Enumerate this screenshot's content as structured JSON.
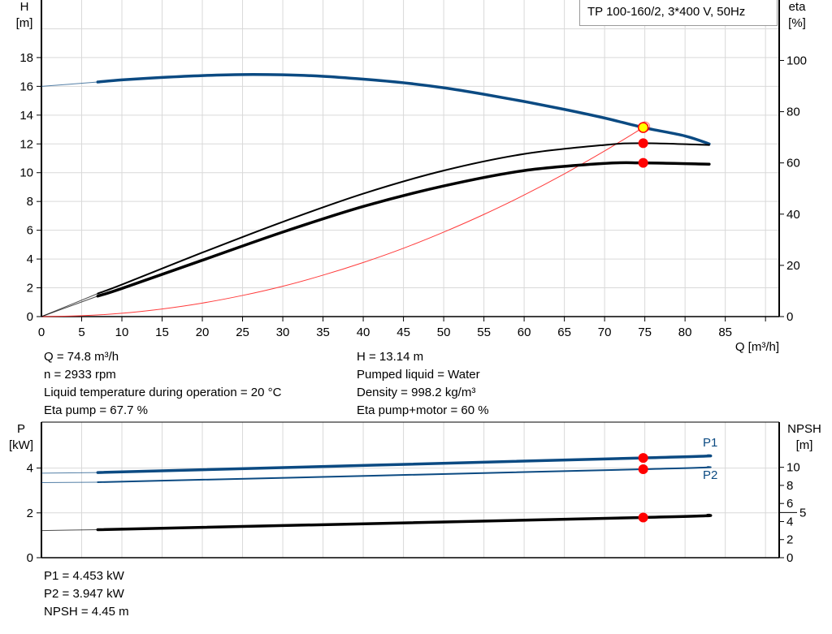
{
  "title": "TP 100-160/2, 3*400 V, 50Hz",
  "colors": {
    "head": "#0b4a82",
    "power": "#0b4a82",
    "eta": "#000000",
    "npsh": "#000000",
    "system_curve": "#ff3b3b",
    "marker": "#ff0000",
    "duty_point_fill": "#ffff00",
    "grid": "#d9d9d9"
  },
  "chart_data": [
    {
      "type": "line",
      "title": "",
      "xlabel": "Q [m³/h]",
      "xlim": [
        0,
        91.7
      ],
      "xticks": [
        0,
        5,
        10,
        15,
        20,
        25,
        30,
        35,
        40,
        45,
        50,
        55,
        60,
        65,
        70,
        75,
        80,
        85
      ],
      "ylabel_left": "H\n[m]",
      "ylabel_left_lines": [
        "H",
        "[m]"
      ],
      "ylim_left": [
        0,
        22
      ],
      "yticks_left": [
        0,
        2,
        4,
        6,
        8,
        10,
        12,
        14,
        16,
        18
      ],
      "ylabel_right_lines": [
        "eta",
        "[%]"
      ],
      "ylim_right": [
        0,
        123.6
      ],
      "yticks_right": [
        0,
        20,
        40,
        60,
        80,
        100
      ],
      "grid": true,
      "series": [
        {
          "key": "H",
          "axis": "left",
          "x": [
            0,
            7,
            10,
            15,
            20,
            25,
            30,
            35,
            40,
            45,
            50,
            55,
            60,
            65,
            70,
            74.8,
            80,
            83
          ],
          "y": [
            16,
            16.3,
            16.45,
            16.62,
            16.75,
            16.82,
            16.8,
            16.7,
            16.5,
            16.25,
            15.9,
            15.45,
            14.95,
            14.4,
            13.8,
            13.14,
            12.55,
            12.0
          ],
          "thin_until": 7
        },
        {
          "key": "system",
          "axis": "left",
          "x": [
            0,
            5,
            10,
            15,
            20,
            25,
            30,
            35,
            40,
            45,
            50,
            55,
            60,
            65,
            70,
            74.8
          ],
          "y": [
            0,
            0.06,
            0.23,
            0.53,
            0.94,
            1.47,
            2.11,
            2.88,
            3.76,
            4.75,
            5.87,
            7.1,
            8.45,
            9.92,
            11.51,
            13.14
          ]
        },
        {
          "key": "eta_pump",
          "axis": "right",
          "x": [
            0,
            7,
            10,
            20,
            30,
            40,
            50,
            60,
            70,
            74.8,
            83
          ],
          "y": [
            0,
            9,
            12.5,
            25,
            37,
            48,
            57,
            63.5,
            67,
            67.7,
            67
          ],
          "thin_until": 7
        },
        {
          "key": "eta_pump_motor",
          "axis": "right",
          "x": [
            0,
            7,
            10,
            20,
            30,
            40,
            50,
            60,
            70,
            74.8,
            83
          ],
          "y": [
            0,
            8,
            11,
            22,
            33,
            43,
            51,
            57,
            59.8,
            60,
            59.5
          ],
          "thin_until": 7
        }
      ],
      "duty_point": {
        "Q": 74.8,
        "H": 13.14,
        "eta_pump": 67.7,
        "eta_pump_motor": 60
      }
    },
    {
      "type": "line",
      "xlim": [
        0,
        91.7
      ],
      "ylabel_left_lines": [
        "P",
        "[kW]"
      ],
      "ylim_left": [
        0,
        6.05
      ],
      "yticks_left": [
        0,
        2,
        4
      ],
      "ylabel_right_lines": [
        "NPSH",
        "[m]"
      ],
      "ylim_right": [
        0,
        15.0
      ],
      "yticks_right": [
        0,
        2,
        4,
        5,
        6,
        8,
        10
      ],
      "grid": true,
      "series": [
        {
          "key": "P1",
          "name": "P1",
          "axis": "left",
          "x": [
            0,
            7,
            74.8,
            83
          ],
          "y": [
            3.77,
            3.8,
            4.453,
            4.55
          ],
          "thin_until": 7
        },
        {
          "key": "P2",
          "name": "P2",
          "axis": "left",
          "x": [
            0,
            7,
            74.8,
            83
          ],
          "y": [
            3.35,
            3.37,
            3.947,
            4.05
          ],
          "thin_until": 7
        },
        {
          "key": "NPSH",
          "axis": "right",
          "x": [
            0,
            7,
            74.8,
            83
          ],
          "y": [
            3.0,
            3.1,
            4.45,
            4.7
          ],
          "thin_until": 7
        }
      ],
      "duty_point": {
        "Q": 74.8,
        "P1": 4.453,
        "P2": 3.947,
        "NPSH": 4.45
      }
    }
  ],
  "info_left": [
    "Q = 74.8 m³/h",
    "n = 2933 rpm",
    "Liquid temperature during operation = 20 °C",
    "Eta pump = 67.7 %"
  ],
  "info_right": [
    "H = 13.14 m",
    "Pumped liquid = Water",
    "Density = 998.2 kg/m³",
    "Eta pump+motor = 60 %"
  ],
  "info_bottom": [
    "P1 = 4.453 kW",
    "P2 = 3.947 kW",
    "NPSH = 4.45 m"
  ]
}
